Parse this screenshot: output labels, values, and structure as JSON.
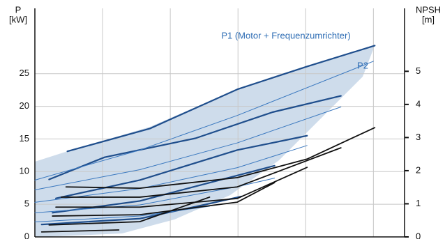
{
  "chart_data": {
    "type": "line",
    "ylabel": [
      "P",
      "[kW]"
    ],
    "y2label": [
      "NPSH",
      "[m]"
    ],
    "annotations": [
      "P1 (Motor + Frequenzumrichter)",
      "P2"
    ],
    "xlim": [
      0,
      5.46
    ],
    "xticks": [
      1,
      2,
      3,
      4,
      5
    ],
    "ylim": [
      0,
      35
    ],
    "yticks": [
      0,
      5,
      10,
      15,
      20,
      25
    ],
    "y2lim": [
      0,
      6.9
    ],
    "y2ticks": [
      0,
      1,
      2,
      3,
      4,
      5
    ],
    "grid": true,
    "series": [
      {
        "color": "#1f4e8c",
        "width": 2.2,
        "x": [
          0.48,
          1.7,
          2.99,
          4.02,
          5.02
        ],
        "values": [
          13.1,
          16.6,
          22.6,
          26.1,
          29.3
        ]
      },
      {
        "color": "#1f4e8c",
        "width": 2.2,
        "x": [
          0.21,
          1.03,
          2.37,
          3.51,
          4.52
        ],
        "values": [
          8.8,
          12.2,
          15.1,
          19.1,
          21.6
        ]
      },
      {
        "color": "#1f4e8c",
        "width": 2.2,
        "x": [
          0.31,
          1.55,
          2.99,
          4.02
        ],
        "values": [
          5.9,
          8.7,
          13.3,
          15.5
        ]
      },
      {
        "color": "#1f4e8c",
        "width": 2.2,
        "x": [
          0.26,
          1.55,
          2.58,
          3.54
        ],
        "values": [
          3.7,
          5.5,
          8.3,
          10.9
        ]
      },
      {
        "color": "#1f4e8c",
        "width": 2.2,
        "x": [
          0.1,
          1.55,
          2.58,
          3.05
        ],
        "values": [
          1.9,
          2.8,
          5.1,
          6.2
        ]
      },
      {
        "color": "#3a78bf",
        "width": 1,
        "x": [
          0,
          1.55,
          2.99,
          5.0
        ],
        "values": [
          8.7,
          13.3,
          18.6,
          26.9
        ]
      },
      {
        "color": "#3a78bf",
        "width": 1,
        "x": [
          0,
          1.55,
          2.99,
          4.52
        ],
        "values": [
          7.2,
          10.3,
          14.4,
          19.9
        ]
      },
      {
        "color": "#3a78bf",
        "width": 1,
        "x": [
          0,
          1.55,
          2.99,
          4.02
        ],
        "values": [
          5.3,
          7.4,
          10.6,
          14.0
        ]
      },
      {
        "color": "#3a78bf",
        "width": 1,
        "x": [
          0,
          1.55,
          2.99,
          3.54
        ],
        "values": [
          3.7,
          4.9,
          7.7,
          9.0
        ]
      },
      {
        "color": "#3a78bf",
        "width": 1,
        "x": [
          0,
          1.55,
          2.58
        ],
        "values": [
          2.3,
          3.2,
          4.7
        ]
      },
      {
        "color": "#111111",
        "width": 1.8,
        "axis": "y2",
        "x": [
          0.46,
          1.55,
          2.99,
          4.02,
          5.02
        ],
        "values": [
          1.51,
          1.47,
          1.79,
          2.35,
          3.3
        ]
      },
      {
        "color": "#111111",
        "width": 1.8,
        "axis": "y2",
        "x": [
          0.39,
          1.55,
          2.99,
          4.52
        ],
        "values": [
          1.2,
          1.2,
          1.51,
          2.69
        ]
      },
      {
        "color": "#111111",
        "width": 1.8,
        "axis": "y2",
        "x": [
          0.31,
          1.55,
          2.99,
          4.02
        ],
        "values": [
          0.9,
          0.9,
          1.16,
          2.1
        ]
      },
      {
        "color": "#111111",
        "width": 1.8,
        "axis": "y2",
        "x": [
          0.26,
          1.55,
          2.99,
          3.54
        ],
        "values": [
          0.63,
          0.67,
          1.05,
          1.64
        ]
      },
      {
        "color": "#111111",
        "width": 1.8,
        "axis": "y2",
        "x": [
          0.21,
          1.55,
          2.58
        ],
        "values": [
          0.36,
          0.46,
          1.2
        ]
      },
      {
        "color": "#111111",
        "width": 1.8,
        "axis": "y2",
        "x": [
          0.1,
          1.24
        ],
        "values": [
          0.15,
          0.21
        ]
      }
    ]
  }
}
